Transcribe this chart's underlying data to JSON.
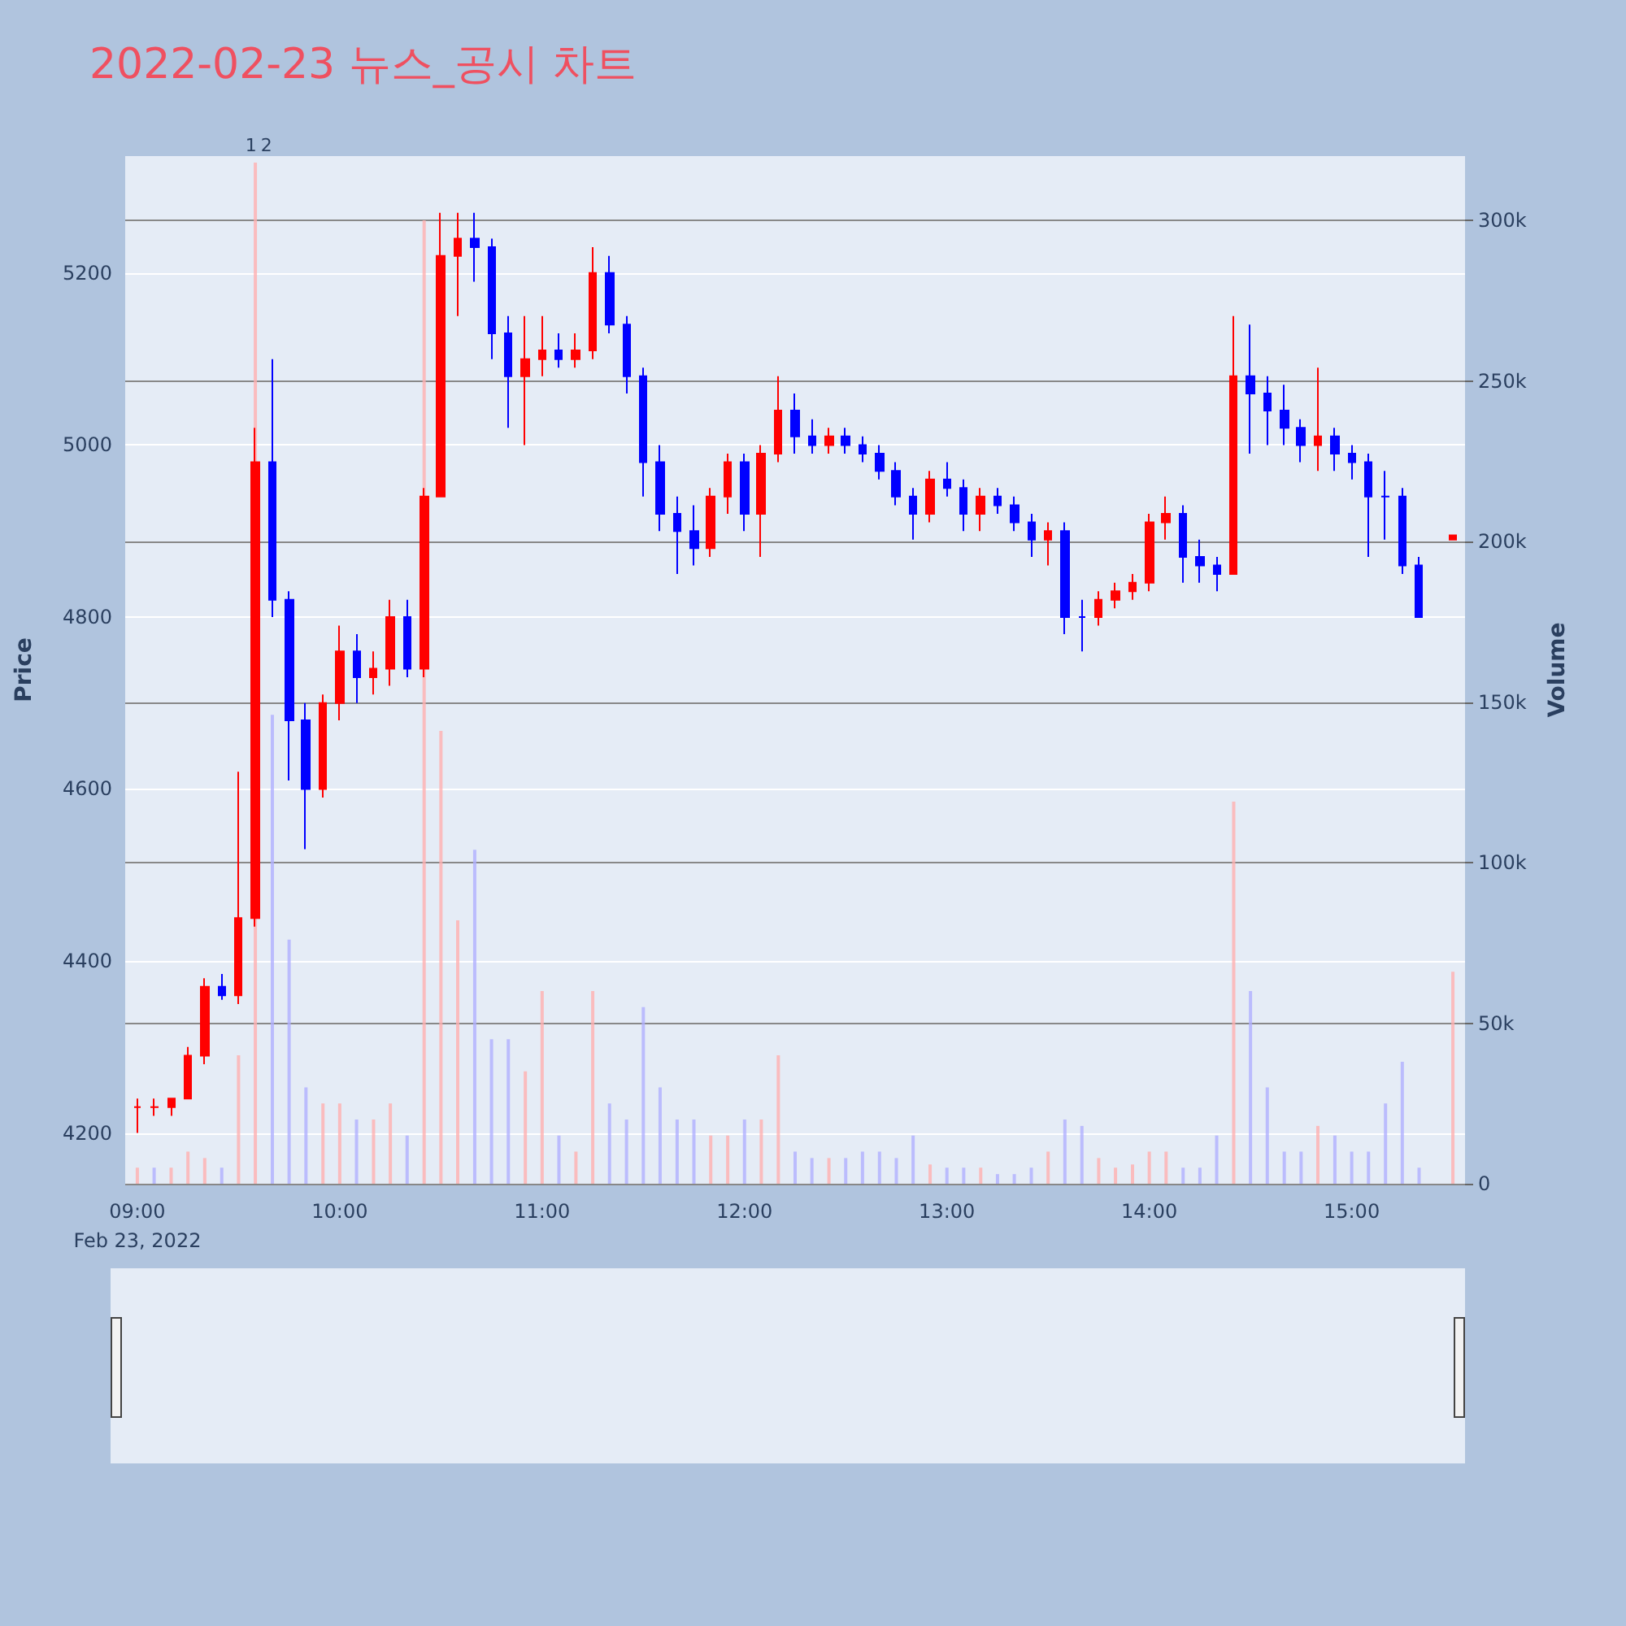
{
  "chart_data": {
    "type": "candlestick",
    "title": "2022-02-23 뉴스_공시 차트",
    "ylabel": "Price",
    "y2label": "Volume",
    "x": [
      9,
      9.083,
      9.167,
      9.25,
      9.333,
      9.417,
      9.5,
      9.583,
      9.667,
      9.75,
      9.833,
      9.917,
      10,
      10.083,
      10.167,
      10.25,
      10.333,
      10.417,
      10.5,
      10.583,
      10.667,
      10.75,
      10.833,
      10.917,
      11,
      11.083,
      11.167,
      11.25,
      11.333,
      11.417,
      11.5,
      11.583,
      11.667,
      11.75,
      11.833,
      11.917,
      12,
      12.083,
      12.167,
      12.25,
      12.333,
      12.417,
      12.5,
      12.583,
      12.667,
      12.75,
      12.833,
      12.917,
      13,
      13.083,
      13.167,
      13.25,
      13.333,
      13.417,
      13.5,
      13.583,
      13.667,
      13.75,
      13.833,
      13.917,
      14,
      14.083,
      14.167,
      14.25,
      14.333,
      14.417,
      14.5,
      14.583,
      14.667,
      14.75,
      14.833,
      14.917,
      15,
      15.083,
      15.167,
      15.25,
      15.333,
      15.5
    ],
    "ohlc": [
      [
        4230,
        4240,
        4200,
        4230
      ],
      [
        4230,
        4240,
        4220,
        4230
      ],
      [
        4230,
        4240,
        4220,
        4240
      ],
      [
        4240,
        4300,
        4240,
        4290
      ],
      [
        4290,
        4380,
        4280,
        4370
      ],
      [
        4370,
        4385,
        4355,
        4360
      ],
      [
        4360,
        4620,
        4350,
        4450
      ],
      [
        4450,
        5020,
        4440,
        4980
      ],
      [
        4980,
        5100,
        4800,
        4820
      ],
      [
        4820,
        4830,
        4610,
        4680
      ],
      [
        4680,
        4700,
        4530,
        4600
      ],
      [
        4600,
        4710,
        4590,
        4700
      ],
      [
        4700,
        4790,
        4680,
        4760
      ],
      [
        4760,
        4780,
        4700,
        4730
      ],
      [
        4730,
        4760,
        4710,
        4740
      ],
      [
        4740,
        4820,
        4720,
        4800
      ],
      [
        4800,
        4820,
        4730,
        4740
      ],
      [
        4740,
        4950,
        4730,
        4940
      ],
      [
        4940,
        5270,
        4940,
        5220
      ],
      [
        5220,
        5270,
        5150,
        5240
      ],
      [
        5240,
        5270,
        5190,
        5230
      ],
      [
        5230,
        5240,
        5100,
        5130
      ],
      [
        5130,
        5150,
        5020,
        5080
      ],
      [
        5080,
        5150,
        5000,
        5100
      ],
      [
        5100,
        5150,
        5080,
        5110
      ],
      [
        5110,
        5130,
        5090,
        5100
      ],
      [
        5100,
        5130,
        5090,
        5110
      ],
      [
        5110,
        5230,
        5100,
        5200
      ],
      [
        5200,
        5220,
        5130,
        5140
      ],
      [
        5140,
        5150,
        5060,
        5080
      ],
      [
        5080,
        5090,
        4940,
        4980
      ],
      [
        4980,
        5000,
        4900,
        4920
      ],
      [
        4920,
        4940,
        4850,
        4900
      ],
      [
        4900,
        4930,
        4860,
        4880
      ],
      [
        4880,
        4950,
        4870,
        4940
      ],
      [
        4940,
        4990,
        4920,
        4980
      ],
      [
        4980,
        4990,
        4900,
        4920
      ],
      [
        4920,
        5000,
        4870,
        4990
      ],
      [
        4990,
        5080,
        4980,
        5040
      ],
      [
        5040,
        5060,
        4990,
        5010
      ],
      [
        5010,
        5030,
        4990,
        5000
      ],
      [
        5000,
        5020,
        4990,
        5010
      ],
      [
        5010,
        5020,
        4990,
        5000
      ],
      [
        5000,
        5010,
        4980,
        4990
      ],
      [
        4990,
        5000,
        4960,
        4970
      ],
      [
        4970,
        4980,
        4930,
        4940
      ],
      [
        4940,
        4950,
        4890,
        4920
      ],
      [
        4920,
        4970,
        4910,
        4960
      ],
      [
        4960,
        4980,
        4940,
        4950
      ],
      [
        4950,
        4960,
        4900,
        4920
      ],
      [
        4920,
        4950,
        4900,
        4940
      ],
      [
        4940,
        4950,
        4920,
        4930
      ],
      [
        4930,
        4940,
        4900,
        4910
      ],
      [
        4910,
        4920,
        4870,
        4890
      ],
      [
        4890,
        4910,
        4860,
        4900
      ],
      [
        4900,
        4910,
        4780,
        4800
      ],
      [
        4800,
        4820,
        4760,
        4800
      ],
      [
        4800,
        4830,
        4790,
        4820
      ],
      [
        4820,
        4840,
        4810,
        4830
      ],
      [
        4830,
        4850,
        4820,
        4840
      ],
      [
        4840,
        4920,
        4830,
        4910
      ],
      [
        4910,
        4940,
        4890,
        4920
      ],
      [
        4920,
        4930,
        4840,
        4870
      ],
      [
        4870,
        4890,
        4840,
        4860
      ],
      [
        4860,
        4870,
        4830,
        4850
      ],
      [
        4850,
        5150,
        4850,
        5080
      ],
      [
        5080,
        5140,
        4990,
        5060
      ],
      [
        5060,
        5080,
        5000,
        5040
      ],
      [
        5040,
        5070,
        5000,
        5020
      ],
      [
        5020,
        5030,
        4980,
        5000
      ],
      [
        5000,
        5090,
        4970,
        5010
      ],
      [
        5010,
        5020,
        4970,
        4990
      ],
      [
        4990,
        5000,
        4960,
        4980
      ],
      [
        4980,
        4990,
        4870,
        4940
      ],
      [
        4940,
        4970,
        4890,
        4940
      ],
      [
        4940,
        4950,
        4850,
        4860
      ],
      [
        4860,
        4870,
        4800,
        4800
      ],
      [
        4890,
        4895,
        4890,
        4895
      ]
    ],
    "colors": [
      "#ff0000",
      "#ff0000",
      "#ff0000",
      "#ff0000",
      "#ff0000",
      "#0000ff",
      "#ff0000",
      "#ff0000",
      "#0000ff",
      "#0000ff",
      "#0000ff",
      "#ff0000",
      "#ff0000",
      "#0000ff",
      "#ff0000",
      "#ff0000",
      "#0000ff",
      "#ff0000",
      "#ff0000",
      "#ff0000",
      "#0000ff",
      "#0000ff",
      "#0000ff",
      "#ff0000",
      "#ff0000",
      "#0000ff",
      "#ff0000",
      "#ff0000",
      "#0000ff",
      "#0000ff",
      "#0000ff",
      "#0000ff",
      "#0000ff",
      "#0000ff",
      "#ff0000",
      "#ff0000",
      "#0000ff",
      "#ff0000",
      "#ff0000",
      "#0000ff",
      "#0000ff",
      "#ff0000",
      "#0000ff",
      "#0000ff",
      "#0000ff",
      "#0000ff",
      "#0000ff",
      "#ff0000",
      "#0000ff",
      "#0000ff",
      "#ff0000",
      "#0000ff",
      "#0000ff",
      "#0000ff",
      "#ff0000",
      "#0000ff",
      "#0000ff",
      "#ff0000",
      "#ff0000",
      "#ff0000",
      "#ff0000",
      "#ff0000",
      "#0000ff",
      "#0000ff",
      "#0000ff",
      "#ff0000",
      "#0000ff",
      "#0000ff",
      "#0000ff",
      "#0000ff",
      "#ff0000",
      "#0000ff",
      "#0000ff",
      "#0000ff",
      "#0000ff",
      "#0000ff",
      "#0000ff",
      "#ff0000"
    ],
    "series": [
      {
        "type": "bar",
        "axis": "y2",
        "values": [
          5000,
          5000,
          5000,
          10000,
          8000,
          5000,
          40000,
          318000,
          146000,
          76000,
          30000,
          25000,
          25000,
          20000,
          20000,
          25000,
          15000,
          300000,
          141000,
          82000,
          104000,
          45000,
          45000,
          35000,
          60000,
          15000,
          10000,
          60000,
          25000,
          20000,
          55000,
          30000,
          20000,
          20000,
          15000,
          15000,
          20000,
          20000,
          40000,
          10000,
          8000,
          8000,
          8000,
          10000,
          10000,
          8000,
          15000,
          6000,
          5000,
          5000,
          5000,
          3000,
          3000,
          5000,
          10000,
          20000,
          18000,
          8000,
          5000,
          6000,
          10000,
          10000,
          5000,
          5000,
          15000,
          119000,
          60000,
          30000,
          10000,
          10000,
          18000,
          15000,
          10000,
          10000,
          25000,
          38000,
          5000,
          66000
        ],
        "colors": [
          "#ffb0b0",
          "#b0b0ff",
          "#ffb0b0",
          "#ffb0b0",
          "#ffb0b0",
          "#b0b0ff",
          "#ffb0b0",
          "#ffb0b0",
          "#b0b0ff",
          "#b0b0ff",
          "#b0b0ff",
          "#ffb0b0",
          "#ffb0b0",
          "#b0b0ff",
          "#ffb0b0",
          "#ffb0b0",
          "#b0b0ff",
          "#ffb0b0",
          "#ffb0b0",
          "#ffb0b0",
          "#b0b0ff",
          "#b0b0ff",
          "#b0b0ff",
          "#ffb0b0",
          "#ffb0b0",
          "#b0b0ff",
          "#ffb0b0",
          "#ffb0b0",
          "#b0b0ff",
          "#b0b0ff",
          "#b0b0ff",
          "#b0b0ff",
          "#b0b0ff",
          "#b0b0ff",
          "#ffb0b0",
          "#ffb0b0",
          "#b0b0ff",
          "#ffb0b0",
          "#ffb0b0",
          "#b0b0ff",
          "#b0b0ff",
          "#ffb0b0",
          "#b0b0ff",
          "#b0b0ff",
          "#b0b0ff",
          "#b0b0ff",
          "#b0b0ff",
          "#ffb0b0",
          "#b0b0ff",
          "#b0b0ff",
          "#ffb0b0",
          "#b0b0ff",
          "#b0b0ff",
          "#b0b0ff",
          "#ffb0b0",
          "#b0b0ff",
          "#b0b0ff",
          "#ffb0b0",
          "#ffb0b0",
          "#ffb0b0",
          "#ffb0b0",
          "#ffb0b0",
          "#b0b0ff",
          "#b0b0ff",
          "#b0b0ff",
          "#ffb0b0",
          "#b0b0ff",
          "#b0b0ff",
          "#b0b0ff",
          "#b0b0ff",
          "#ffb0b0",
          "#b0b0ff",
          "#b0b0ff",
          "#b0b0ff",
          "#b0b0ff",
          "#b0b0ff",
          "#b0b0ff",
          "#ffb0b0"
        ]
      }
    ],
    "xlim": [
      8.94,
      15.56
    ],
    "xticks": [
      {
        "value": 9,
        "label": "09:00\nFeb 23, 2022"
      },
      {
        "value": 10,
        "label": "10:00"
      },
      {
        "value": 11,
        "label": "11:00"
      },
      {
        "value": 12,
        "label": "12:00"
      },
      {
        "value": 13,
        "label": "13:00"
      },
      {
        "value": 14,
        "label": "14:00"
      },
      {
        "value": 15,
        "label": "15:00"
      }
    ],
    "ylim": [
      4141,
      5336
    ],
    "yticks": [
      4200,
      4400,
      4600,
      4800,
      5000,
      5200
    ],
    "y2lim": [
      0,
      320000
    ],
    "y2ticks": [
      {
        "value": 0,
        "label": "0"
      },
      {
        "value": 50000,
        "label": "50k"
      },
      {
        "value": 100000,
        "label": "100k"
      },
      {
        "value": 150000,
        "label": "150k"
      },
      {
        "value": 200000,
        "label": "200k"
      },
      {
        "value": 250000,
        "label": "250k"
      },
      {
        "value": 300000,
        "label": "300k"
      }
    ],
    "annotations": [
      {
        "text": "1",
        "x": 9.59,
        "y": 5336
      },
      {
        "text": "2",
        "x": 9.61,
        "y": 5336
      }
    ],
    "grid": "y",
    "legend": false
  }
}
